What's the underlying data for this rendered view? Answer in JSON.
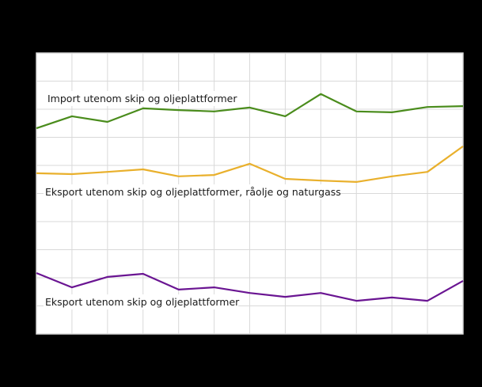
{
  "chart_data": {
    "type": "line",
    "title": "",
    "xlabel": "",
    "ylabel": "",
    "x": [
      1,
      2,
      3,
      4,
      5,
      6,
      7,
      8,
      9,
      10,
      11,
      12,
      13
    ],
    "ylim": [
      0,
      100
    ],
    "y_gridlines": 10,
    "x_gridlines": 12,
    "grid": true,
    "legend_position": "inline-labels",
    "note": "Axis tick labels not visible in screenshot; values expressed on 0-100 relative scale read from gridlines",
    "series": [
      {
        "name": "Import utenom skip og oljeplattformer",
        "color": "#4a8c1c",
        "values": [
          73.2,
          77.5,
          75.5,
          80.3,
          79.7,
          79.2,
          80.6,
          77.5,
          85.4,
          79.2,
          78.9,
          80.8,
          81.1
        ]
      },
      {
        "name": "Eksport utenom skip og oljeplattformer, råolje og naturgass",
        "color": "#e9b02c",
        "values": [
          57.2,
          56.9,
          57.7,
          58.6,
          56.1,
          56.6,
          60.6,
          55.2,
          54.6,
          54.1,
          56.1,
          57.7,
          66.8
        ]
      },
      {
        "name": "Eksport utenom skip og oljeplattformer",
        "color": "#6a1592",
        "values": [
          21.7,
          16.6,
          20.3,
          21.4,
          15.8,
          16.6,
          14.6,
          13.2,
          14.6,
          11.8,
          13.0,
          11.8,
          18.9
        ]
      }
    ],
    "annotations": [
      {
        "text": "Import utenom skip og oljeplattformer",
        "series": 0
      },
      {
        "text": "Eksport  utenom skip og oljeplattformer,  råolje  og naturgass",
        "series": 1
      },
      {
        "text": "Eksport  utenom skip og oljeplattformer",
        "series": 2
      }
    ]
  },
  "labels": {
    "import": "Import utenom skip og oljeplattformer",
    "export_incl": "Eksport  utenom skip og oljeplattformer,  råolje  og naturgass",
    "export": "Eksport  utenom skip og oljeplattformer"
  },
  "colors": {
    "background": "#000000",
    "plot_bg": "#ffffff",
    "grid": "#d9d9d9"
  }
}
